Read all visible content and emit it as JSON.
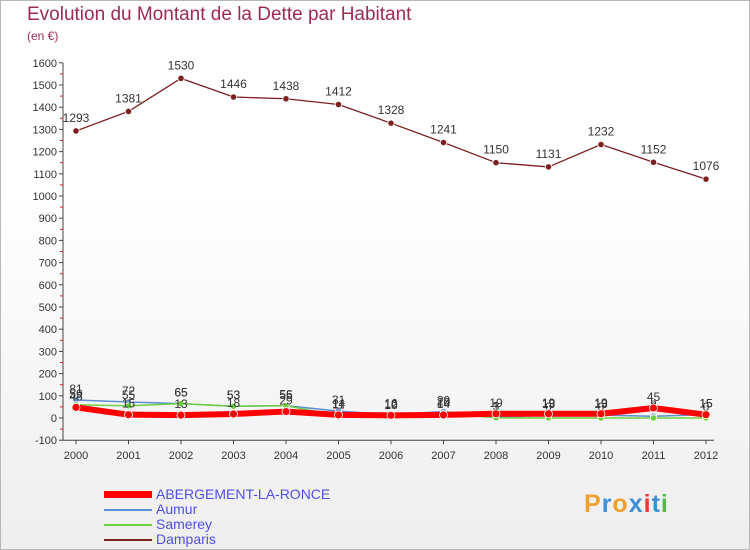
{
  "title": "Evolution du Montant de la Dette par Habitant",
  "subtitle": "(en €)",
  "logo": {
    "letters": [
      "P",
      "r",
      "o",
      "x",
      "i",
      "t",
      "i"
    ],
    "colors": [
      "#f0a030",
      "#3f8fd8",
      "#f0a030",
      "#3f8fd8",
      "#e83a30",
      "#3f8fd8",
      "#55b84a"
    ]
  },
  "chart_data": {
    "type": "line",
    "x": [
      2000,
      2001,
      2002,
      2003,
      2004,
      2005,
      2006,
      2007,
      2008,
      2009,
      2010,
      2011,
      2012
    ],
    "ylim": [
      -100,
      1600
    ],
    "yticks": [
      -100,
      0,
      100,
      200,
      300,
      400,
      500,
      600,
      700,
      800,
      900,
      1000,
      1100,
      1200,
      1300,
      1400,
      1500,
      1600
    ],
    "grid": false,
    "legend_position": "bottom-left",
    "series": [
      {
        "name": "Damparis",
        "color": "#7b2020",
        "values": [
          1293,
          1381,
          1530,
          1446,
          1438,
          1412,
          1328,
          1241,
          1150,
          1131,
          1232,
          1152,
          1076
        ]
      },
      {
        "name": "Aumur",
        "color": "#5b8fd0",
        "values": [
          81,
          72,
          65,
          53,
          56,
          31,
          16,
          29,
          3,
          13,
          13,
          8,
          15
        ]
      },
      {
        "name": "Samerey",
        "color": "#6ed040",
        "values": [
          59,
          55,
          65,
          53,
          55,
          11,
          10,
          20,
          1,
          0,
          0,
          0,
          0
        ]
      },
      {
        "name": "ABERGEMENT-LA-RONCE",
        "color": "#ff0000",
        "values": [
          48,
          15,
          13,
          18,
          29,
          14,
          12,
          14,
          19,
          19,
          19,
          45,
          15
        ]
      }
    ]
  }
}
